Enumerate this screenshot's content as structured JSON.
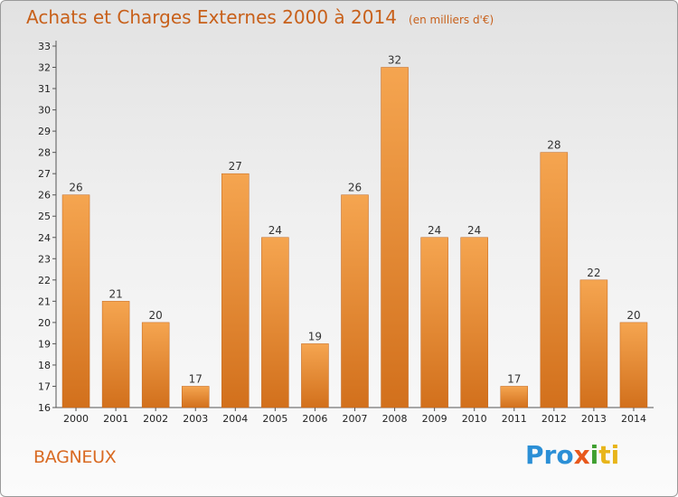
{
  "chart_data": {
    "type": "bar",
    "title": "Achats et Charges Externes 2000 à 2014",
    "subtitle": "(en milliers d'€)",
    "categories": [
      "2000",
      "2001",
      "2002",
      "2003",
      "2004",
      "2005",
      "2006",
      "2007",
      "2008",
      "2009",
      "2010",
      "2011",
      "2012",
      "2013",
      "2014"
    ],
    "values": [
      26,
      21,
      20,
      17,
      27,
      24,
      19,
      26,
      32,
      24,
      24,
      17,
      28,
      22,
      20
    ],
    "ylim": [
      16,
      33
    ],
    "yticks": [
      16,
      17,
      18,
      19,
      20,
      21,
      22,
      23,
      24,
      25,
      26,
      27,
      28,
      29,
      30,
      31,
      32,
      33
    ],
    "grid": false,
    "bar_color": "#f0923a",
    "bar_color_dark": "#d6741c"
  },
  "footer": {
    "city": "BAGNEUX",
    "logo": [
      "Pro",
      "x",
      "i",
      "ti"
    ]
  }
}
